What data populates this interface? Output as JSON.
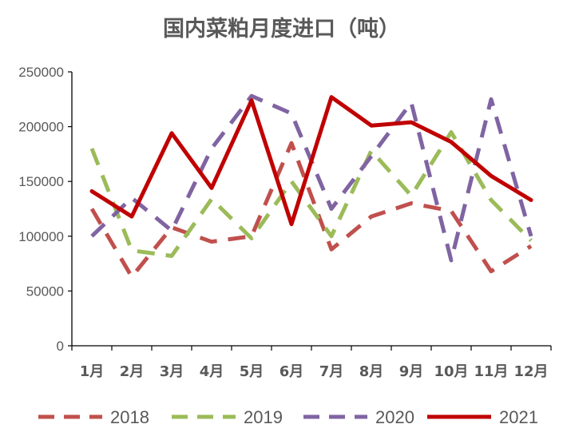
{
  "chart_data": {
    "type": "line",
    "title": "国内菜粕月度进口（吨）",
    "categories": [
      "1月",
      "2月",
      "3月",
      "4月",
      "5月",
      "6月",
      "7月",
      "8月",
      "9月",
      "10月",
      "11月",
      "12月"
    ],
    "ylim": [
      0,
      250000
    ],
    "yticks": [
      0,
      50000,
      100000,
      150000,
      200000,
      250000
    ],
    "ytick_labels": [
      "0",
      "50000",
      "100000",
      "150000",
      "200000",
      "250000"
    ],
    "grid": false,
    "legend_position": "bottom",
    "series": [
      {
        "name": "2018",
        "color": "#c0504d",
        "style": "dashed",
        "values": [
          125000,
          63000,
          108000,
          95000,
          100000,
          185000,
          88000,
          118000,
          130000,
          123000,
          68000,
          91000
        ]
      },
      {
        "name": "2019",
        "color": "#9bbb59",
        "style": "dashed",
        "values": [
          180000,
          87000,
          82000,
          134000,
          98000,
          150000,
          100000,
          178000,
          137000,
          195000,
          133000,
          96000
        ]
      },
      {
        "name": "2020",
        "color": "#8064a2",
        "style": "dashed",
        "values": [
          100000,
          135000,
          105000,
          180000,
          228000,
          212000,
          125000,
          173000,
          222000,
          78000,
          225000,
          100000
        ]
      },
      {
        "name": "2021",
        "color": "#c00000",
        "style": "solid",
        "values": [
          141000,
          118000,
          194000,
          144000,
          224000,
          111000,
          227000,
          201000,
          204000,
          186000,
          155000,
          133000
        ]
      }
    ]
  }
}
